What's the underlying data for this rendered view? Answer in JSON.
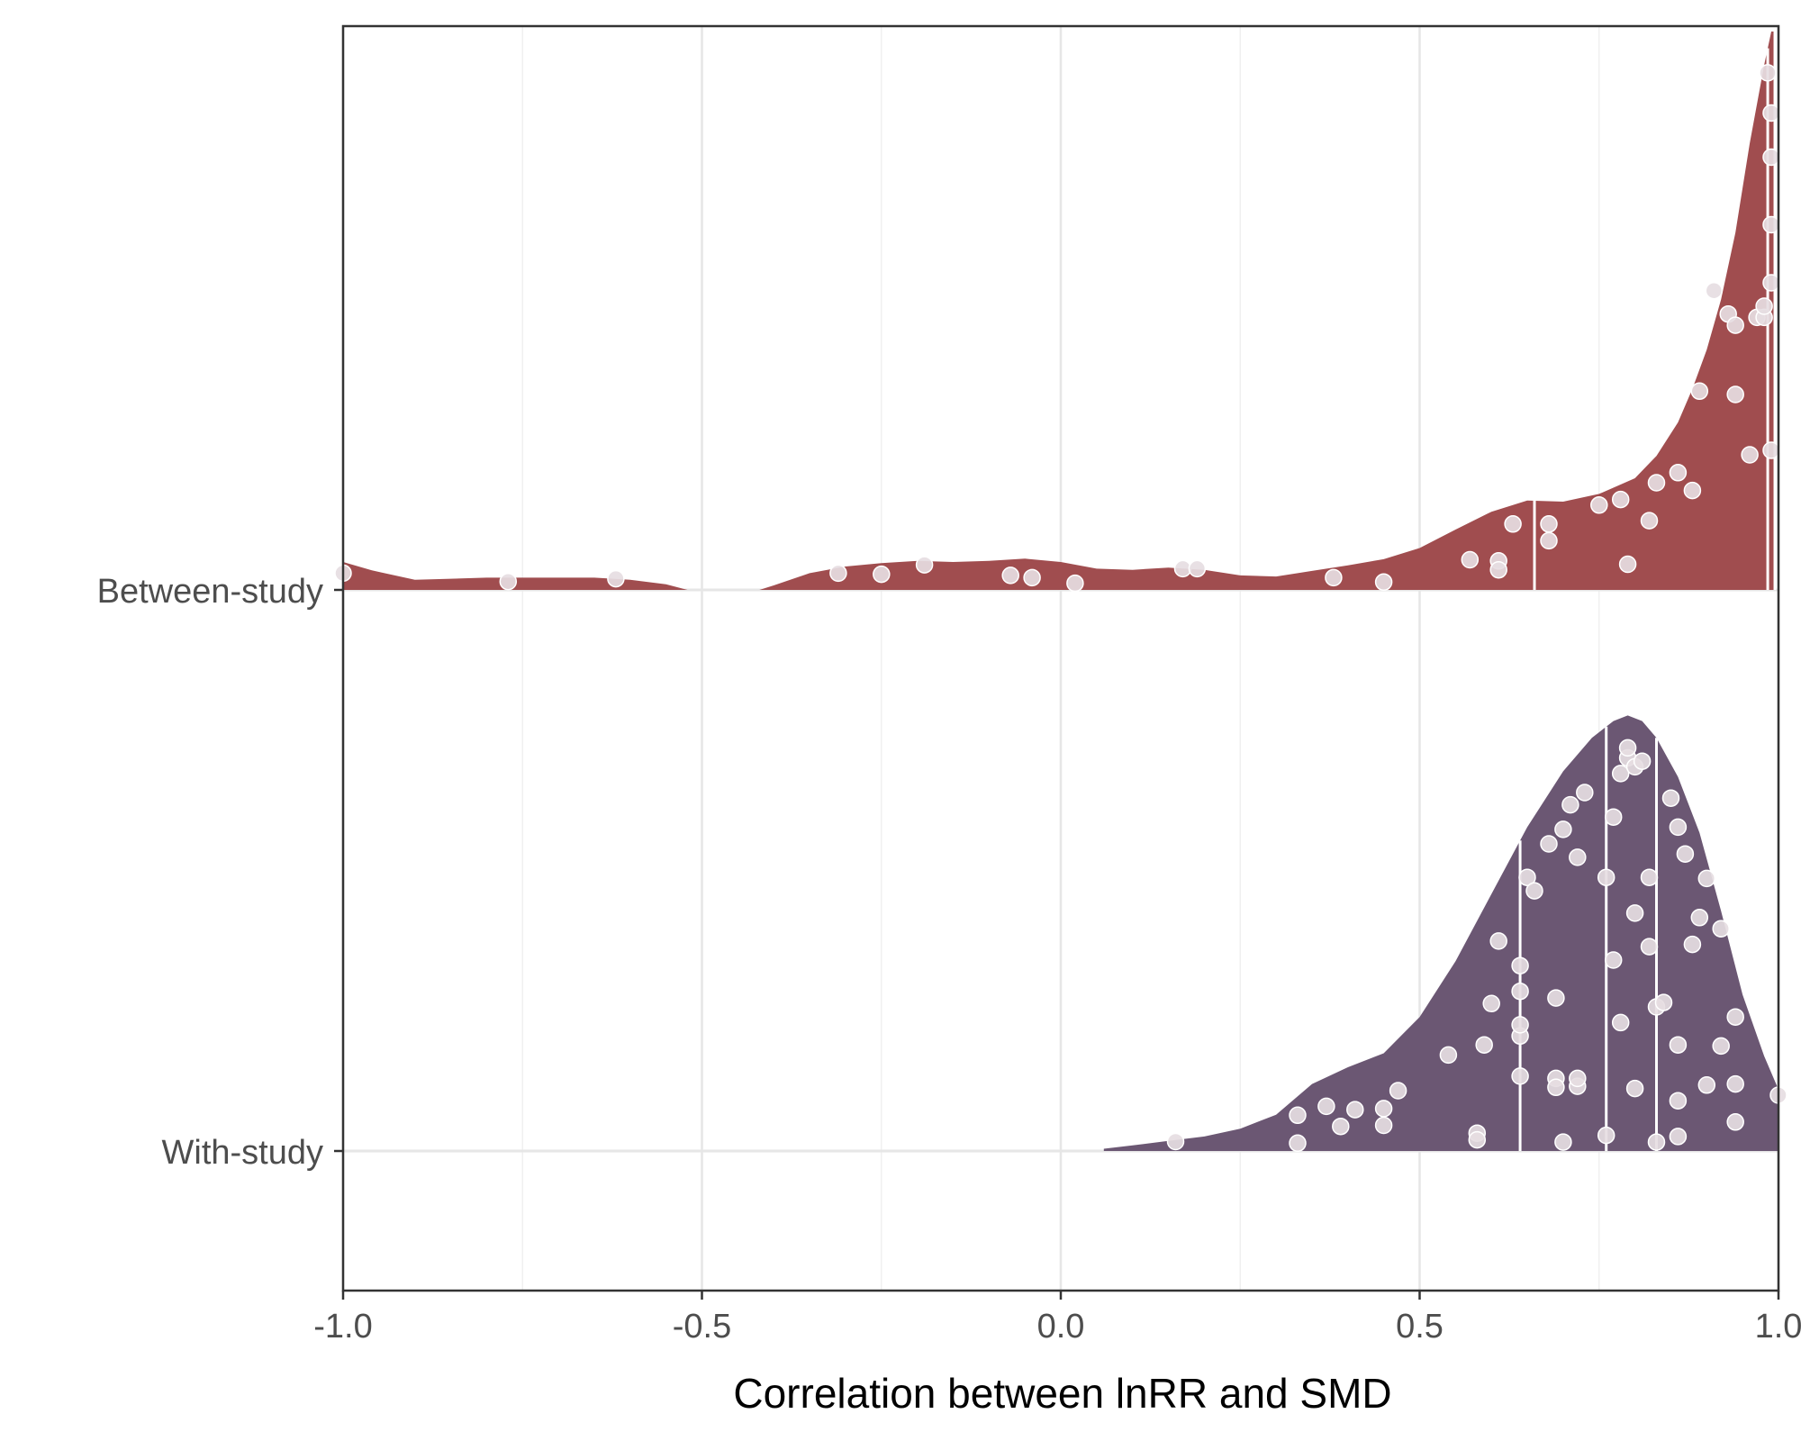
{
  "chart_data": {
    "type": "ridgeline",
    "title": "",
    "xlabel": "Correlation between lnRR and SMD",
    "ylabel": "",
    "xlim": [
      -1.0,
      1.0
    ],
    "x_ticks": [
      -1.0,
      -0.5,
      0.0,
      0.5,
      1.0
    ],
    "x_tick_labels": [
      "-1.0",
      "-0.5",
      "0.0",
      "0.5",
      "1.0"
    ],
    "grid": true,
    "legend": "none",
    "point_color": "#e6dde2",
    "series": [
      {
        "name": "Between-study",
        "color": "#a04d4f",
        "quantiles": [
          0.66,
          0.985,
          0.995
        ],
        "density": [
          [
            -1.0,
            0.05
          ],
          [
            -0.96,
            0.035
          ],
          [
            -0.9,
            0.018
          ],
          [
            -0.85,
            0.02
          ],
          [
            -0.8,
            0.022
          ],
          [
            -0.75,
            0.022
          ],
          [
            -0.7,
            0.022
          ],
          [
            -0.65,
            0.022
          ],
          [
            -0.6,
            0.018
          ],
          [
            -0.55,
            0.01
          ],
          [
            -0.52,
            0.0
          ],
          [
            -0.42,
            0.0
          ],
          [
            -0.4,
            0.008
          ],
          [
            -0.35,
            0.03
          ],
          [
            -0.3,
            0.042
          ],
          [
            -0.25,
            0.048
          ],
          [
            -0.2,
            0.052
          ],
          [
            -0.15,
            0.05
          ],
          [
            -0.1,
            0.052
          ],
          [
            -0.05,
            0.056
          ],
          [
            0.0,
            0.05
          ],
          [
            0.05,
            0.038
          ],
          [
            0.1,
            0.036
          ],
          [
            0.15,
            0.04
          ],
          [
            0.2,
            0.036
          ],
          [
            0.25,
            0.026
          ],
          [
            0.3,
            0.024
          ],
          [
            0.35,
            0.034
          ],
          [
            0.4,
            0.044
          ],
          [
            0.45,
            0.055
          ],
          [
            0.5,
            0.075
          ],
          [
            0.55,
            0.108
          ],
          [
            0.6,
            0.14
          ],
          [
            0.65,
            0.16
          ],
          [
            0.7,
            0.158
          ],
          [
            0.75,
            0.172
          ],
          [
            0.8,
            0.2
          ],
          [
            0.83,
            0.24
          ],
          [
            0.86,
            0.3
          ],
          [
            0.88,
            0.36
          ],
          [
            0.9,
            0.43
          ],
          [
            0.92,
            0.52
          ],
          [
            0.94,
            0.64
          ],
          [
            0.96,
            0.8
          ],
          [
            0.98,
            0.94
          ],
          [
            0.99,
            1.0
          ],
          [
            0.995,
            1.0
          ],
          [
            0.995,
            0.0
          ]
        ],
        "points": [
          [
            -1.0,
            0.03
          ],
          [
            -0.77,
            0.015
          ],
          [
            -0.62,
            0.02
          ],
          [
            -0.31,
            0.03
          ],
          [
            -0.25,
            0.028
          ],
          [
            -0.19,
            0.045
          ],
          [
            -0.07,
            0.026
          ],
          [
            -0.04,
            0.022
          ],
          [
            0.02,
            0.012
          ],
          [
            0.17,
            0.038
          ],
          [
            0.19,
            0.038
          ],
          [
            0.38,
            0.022
          ],
          [
            0.45,
            0.014
          ],
          [
            0.57,
            0.054
          ],
          [
            0.61,
            0.052
          ],
          [
            0.61,
            0.036
          ],
          [
            0.63,
            0.118
          ],
          [
            0.68,
            0.118
          ],
          [
            0.68,
            0.088
          ],
          [
            0.75,
            0.152
          ],
          [
            0.78,
            0.162
          ],
          [
            0.79,
            0.046
          ],
          [
            0.82,
            0.124
          ],
          [
            0.83,
            0.192
          ],
          [
            0.86,
            0.21
          ],
          [
            0.88,
            0.178
          ],
          [
            0.89,
            0.356
          ],
          [
            0.91,
            0.536
          ],
          [
            0.93,
            0.494
          ],
          [
            0.94,
            0.474
          ],
          [
            0.94,
            0.35
          ],
          [
            0.96,
            0.242
          ],
          [
            0.97,
            0.488
          ],
          [
            0.98,
            0.488
          ],
          [
            0.98,
            0.508
          ],
          [
            0.985,
            0.926
          ],
          [
            0.99,
            0.854
          ],
          [
            0.99,
            0.775
          ],
          [
            0.99,
            0.654
          ],
          [
            0.99,
            0.55
          ],
          [
            0.99,
            0.25
          ]
        ]
      },
      {
        "name": "With-study",
        "color": "#6b5773",
        "quantiles": [
          0.64,
          0.76,
          0.83
        ],
        "density": [
          [
            0.06,
            0.0
          ],
          [
            0.06,
            0.004
          ],
          [
            0.1,
            0.01
          ],
          [
            0.15,
            0.018
          ],
          [
            0.2,
            0.026
          ],
          [
            0.25,
            0.04
          ],
          [
            0.3,
            0.065
          ],
          [
            0.35,
            0.12
          ],
          [
            0.4,
            0.15
          ],
          [
            0.45,
            0.175
          ],
          [
            0.5,
            0.24
          ],
          [
            0.55,
            0.34
          ],
          [
            0.6,
            0.46
          ],
          [
            0.65,
            0.58
          ],
          [
            0.7,
            0.68
          ],
          [
            0.74,
            0.74
          ],
          [
            0.77,
            0.77
          ],
          [
            0.79,
            0.78
          ],
          [
            0.81,
            0.77
          ],
          [
            0.83,
            0.74
          ],
          [
            0.86,
            0.67
          ],
          [
            0.89,
            0.57
          ],
          [
            0.92,
            0.43
          ],
          [
            0.95,
            0.28
          ],
          [
            0.98,
            0.17
          ],
          [
            1.0,
            0.11
          ],
          [
            1.0,
            0.0
          ]
        ],
        "points": [
          [
            0.16,
            0.017
          ],
          [
            0.33,
            0.014
          ],
          [
            0.33,
            0.064
          ],
          [
            0.37,
            0.08
          ],
          [
            0.39,
            0.044
          ],
          [
            0.41,
            0.074
          ],
          [
            0.45,
            0.076
          ],
          [
            0.45,
            0.046
          ],
          [
            0.47,
            0.108
          ],
          [
            0.54,
            0.172
          ],
          [
            0.58,
            0.032
          ],
          [
            0.58,
            0.02
          ],
          [
            0.59,
            0.19
          ],
          [
            0.6,
            0.264
          ],
          [
            0.61,
            0.376
          ],
          [
            0.64,
            0.206
          ],
          [
            0.64,
            0.226
          ],
          [
            0.64,
            0.134
          ],
          [
            0.64,
            0.286
          ],
          [
            0.64,
            0.332
          ],
          [
            0.65,
            0.49
          ],
          [
            0.66,
            0.466
          ],
          [
            0.68,
            0.55
          ],
          [
            0.69,
            0.13
          ],
          [
            0.69,
            0.114
          ],
          [
            0.69,
            0.274
          ],
          [
            0.7,
            0.016
          ],
          [
            0.7,
            0.576
          ],
          [
            0.71,
            0.62
          ],
          [
            0.72,
            0.526
          ],
          [
            0.72,
            0.116
          ],
          [
            0.72,
            0.13
          ],
          [
            0.73,
            0.642
          ],
          [
            0.76,
            0.49
          ],
          [
            0.76,
            0.028
          ],
          [
            0.77,
            0.342
          ],
          [
            0.77,
            0.598
          ],
          [
            0.78,
            0.676
          ],
          [
            0.78,
            0.23
          ],
          [
            0.79,
            0.704
          ],
          [
            0.79,
            0.722
          ],
          [
            0.8,
            0.112
          ],
          [
            0.8,
            0.426
          ],
          [
            0.8,
            0.688
          ],
          [
            0.81,
            0.698
          ],
          [
            0.82,
            0.366
          ],
          [
            0.82,
            0.49
          ],
          [
            0.83,
            0.258
          ],
          [
            0.83,
            0.016
          ],
          [
            0.84,
            0.266
          ],
          [
            0.85,
            0.632
          ],
          [
            0.86,
            0.58
          ],
          [
            0.86,
            0.09
          ],
          [
            0.86,
            0.19
          ],
          [
            0.86,
            0.026
          ],
          [
            0.87,
            0.532
          ],
          [
            0.88,
            0.37
          ],
          [
            0.89,
            0.418
          ],
          [
            0.9,
            0.118
          ],
          [
            0.9,
            0.488
          ],
          [
            0.92,
            0.188
          ],
          [
            0.92,
            0.398
          ],
          [
            0.94,
            0.24
          ],
          [
            0.94,
            0.12
          ],
          [
            0.94,
            0.052
          ],
          [
            1.0,
            0.1
          ]
        ]
      }
    ]
  }
}
